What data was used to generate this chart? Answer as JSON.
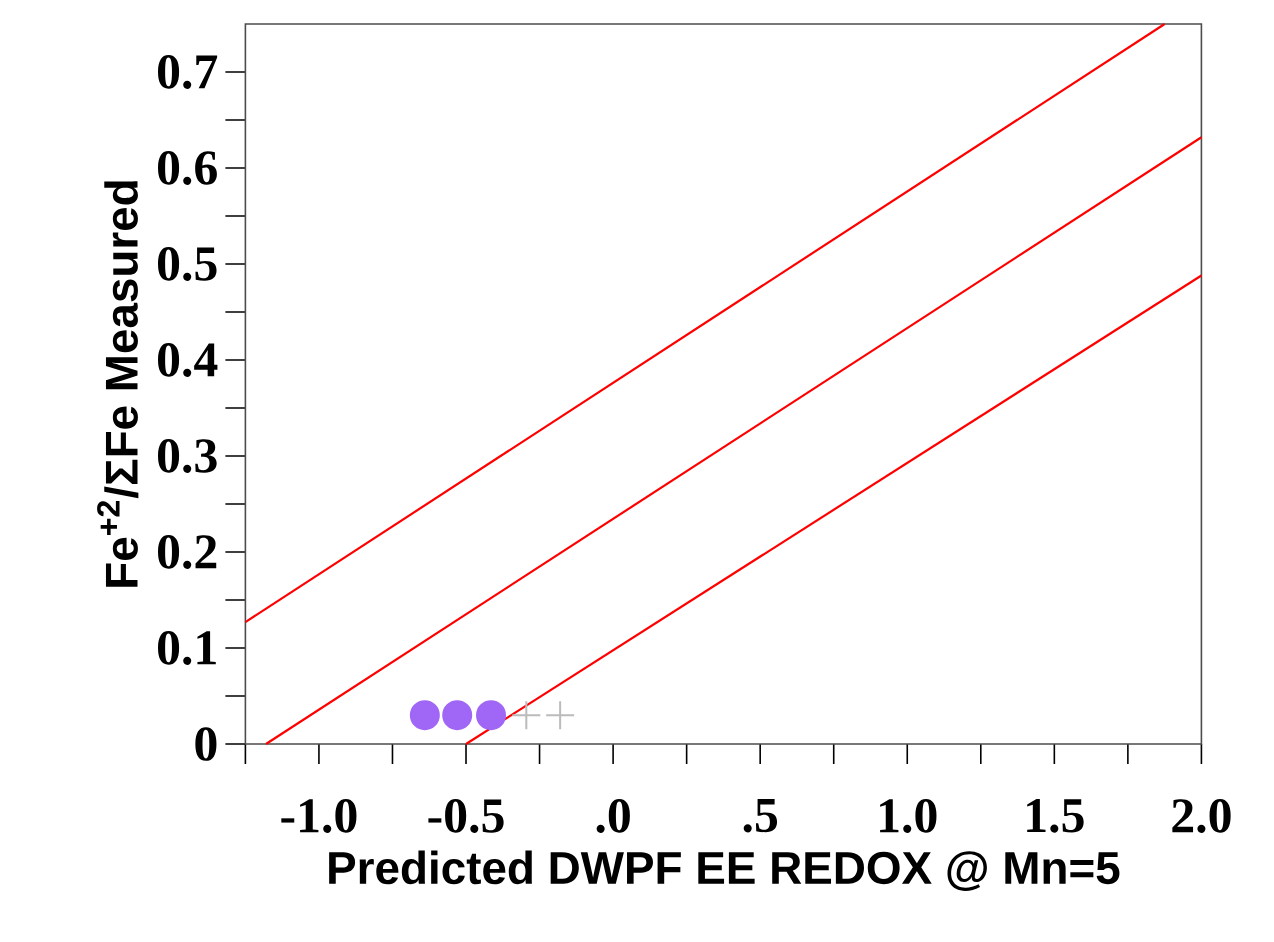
{
  "chart_data": {
    "type": "line",
    "xlabel": "Predicted DWPF EE REDOX @ Mn=5",
    "ylabel": "Fe$^{+2}$/ΣFe Measured",
    "xlim": [
      -1.25,
      2.0
    ],
    "ylim": [
      0,
      0.75
    ],
    "xticks": [
      {
        "value": -1.25,
        "label": null
      },
      {
        "value": -1.0,
        "label": "-1.0"
      },
      {
        "value": -0.75,
        "label": null
      },
      {
        "value": -0.5,
        "label": "-0.5"
      },
      {
        "value": -0.25,
        "label": null
      },
      {
        "value": 0,
        "label": ".0"
      },
      {
        "value": 0.25,
        "label": null
      },
      {
        "value": 0.5,
        "label": ".5"
      },
      {
        "value": 0.75,
        "label": null
      },
      {
        "value": 1.0,
        "label": "1.0"
      },
      {
        "value": 1.25,
        "label": null
      },
      {
        "value": 1.5,
        "label": "1.5"
      },
      {
        "value": 1.75,
        "label": null
      },
      {
        "value": 2.0,
        "label": "2.0"
      }
    ],
    "yticks": [
      0,
      {
        "value": 0.05,
        "label": null
      },
      0.1,
      {
        "value": 0.15,
        "label": null
      },
      0.2,
      {
        "value": 0.25,
        "label": null
      },
      0.3,
      {
        "value": 0.35,
        "label": null
      },
      0.4,
      {
        "value": 0.45,
        "label": null
      },
      0.5,
      {
        "value": 0.55,
        "label": null
      },
      0.6,
      {
        "value": 0.65,
        "label": null
      },
      0.7
    ],
    "series": [
      {
        "color": "#ff0000",
        "x": [
          -1.25,
          1.875
        ],
        "values": [
          0.127,
          0.75
        ]
      },
      {
        "color": "#ff0000",
        "x": [
          -1.18,
          2.0
        ],
        "values": [
          0,
          0.632
        ]
      },
      {
        "color": "#ff0000",
        "x": [
          -0.5,
          2.0
        ],
        "values": [
          0,
          0.488
        ]
      },
      {
        "type": "scatter",
        "marker": "circle",
        "color": "#a066f5",
        "x": [
          -0.64,
          -0.53,
          -0.415
        ],
        "values": [
          0.03,
          0.03,
          0.03
        ]
      },
      {
        "type": "scatter",
        "marker": "cross",
        "color": "#bbbbbb",
        "x": [
          -0.295,
          -0.18
        ],
        "values": [
          0.03,
          0.03
        ]
      }
    ]
  }
}
